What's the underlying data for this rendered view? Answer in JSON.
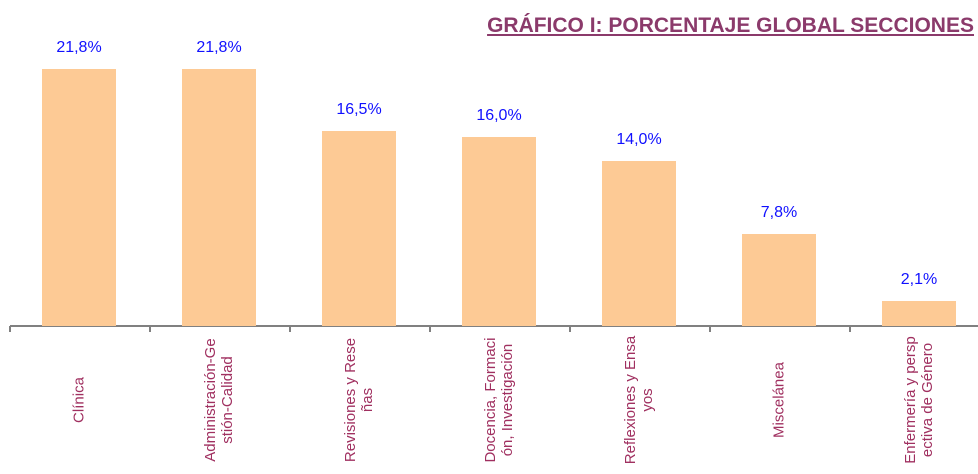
{
  "chart_data": {
    "type": "bar",
    "title": "GRÁFICO I: PORCENTAJE GLOBAL SECCIONES",
    "categories": [
      "Clínica",
      "Administración-Gestión-Calidad",
      "Revisiones y Reseñas",
      "Docencia, Formación, Investigación",
      "Reflexiones y Ensayos",
      "Miscelánea",
      "Enfermería y perspectiva de Género"
    ],
    "values": [
      21.8,
      21.8,
      16.5,
      16.0,
      14.0,
      7.8,
      2.1
    ],
    "value_labels": [
      "21,8%",
      "21,8%",
      "16,5%",
      "16,0%",
      "14,0%",
      "7,8%",
      "2,1%"
    ],
    "color": "#fdca95"
  }
}
